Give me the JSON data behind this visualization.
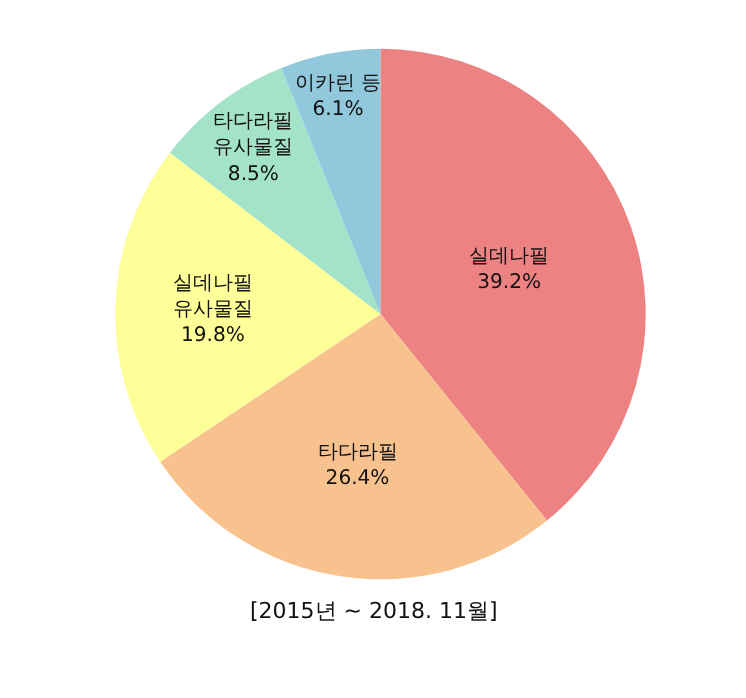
{
  "chart_data": {
    "type": "pie",
    "categories": [
      "실데나필",
      "타다라필",
      "실데나필\n유사물질",
      "타다라필\n유사물질",
      "이카린 등"
    ],
    "values": [
      39.2,
      26.4,
      19.8,
      8.5,
      6.1
    ],
    "value_labels": [
      "39.2%",
      "26.4%",
      "19.8%",
      "8.5%",
      "6.1%"
    ],
    "colors": [
      "#ec8282",
      "#f8c28f",
      "#ffff99",
      "#a3e3c9",
      "#92c8dc"
    ],
    "legend": false,
    "annotations": [
      "[2015년 ~ 2018. 11월]"
    ]
  }
}
